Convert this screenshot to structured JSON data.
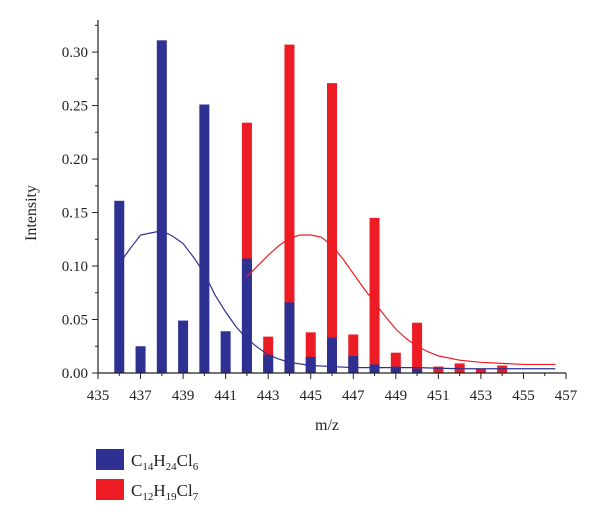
{
  "chart_data": {
    "type": "bar",
    "xlabel": "m/z",
    "ylabel": "Intensity",
    "xlim": [
      435,
      457
    ],
    "ylim": [
      0,
      0.33
    ],
    "x_ticks": [
      "435",
      "437",
      "439",
      "441",
      "443",
      "445",
      "447",
      "449",
      "451",
      "453",
      "455",
      "457"
    ],
    "y_ticks": [
      "0.00",
      "0.05",
      "0.10",
      "0.15",
      "0.20",
      "0.25",
      "0.30"
    ],
    "series": [
      {
        "name": "C14H24Cl6",
        "color": "#2e3192",
        "x": [
          436,
          437,
          438,
          439,
          440,
          441,
          442,
          443,
          444,
          445,
          446,
          447,
          448,
          449,
          450
        ],
        "values": [
          0.161,
          0.025,
          0.311,
          0.049,
          0.251,
          0.039,
          0.107,
          0.017,
          0.066,
          0.015,
          0.033,
          0.016,
          0.008,
          0.006,
          0.004
        ]
      },
      {
        "name": "C12H19Cl7",
        "color": "#ed1c24",
        "x": [
          442,
          443,
          444,
          445,
          446,
          447,
          448,
          449,
          450,
          451,
          452,
          453,
          454
        ],
        "values": [
          0.234,
          0.034,
          0.307,
          0.038,
          0.271,
          0.036,
          0.145,
          0.019,
          0.047,
          0.006,
          0.009,
          0.004,
          0.007
        ]
      }
    ],
    "envelopes": [
      {
        "color": "#2e3192",
        "x": [
          436,
          436.5,
          437,
          437.5,
          438,
          438.5,
          439,
          439.5,
          440,
          440.5,
          441,
          441.5,
          442,
          442.5,
          443,
          443.5,
          444,
          445,
          446,
          447,
          448,
          449,
          450,
          452,
          454,
          456.5
        ],
        "y": [
          0.102,
          0.116,
          0.129,
          0.131,
          0.133,
          0.128,
          0.121,
          0.108,
          0.093,
          0.073,
          0.057,
          0.043,
          0.032,
          0.024,
          0.017,
          0.013,
          0.01,
          0.007,
          0.006,
          0.005,
          0.005,
          0.005,
          0.005,
          0.004,
          0.004,
          0.004
        ]
      },
      {
        "color": "#ed1c24",
        "x": [
          442,
          442.5,
          443,
          443.5,
          444,
          444.5,
          445,
          445.5,
          446,
          446.5,
          447,
          447.5,
          448,
          448.5,
          449,
          449.5,
          450,
          450.5,
          451,
          452,
          453,
          454,
          455,
          456.5
        ],
        "y": [
          0.09,
          0.1,
          0.11,
          0.119,
          0.126,
          0.129,
          0.129,
          0.127,
          0.119,
          0.107,
          0.093,
          0.079,
          0.066,
          0.053,
          0.041,
          0.032,
          0.025,
          0.02,
          0.016,
          0.012,
          0.01,
          0.009,
          0.008,
          0.008
        ]
      }
    ]
  },
  "legend": {
    "items": [
      {
        "color": "#2e3192",
        "base1": "C",
        "sub1": "14",
        "base2": "H",
        "sub2": "24",
        "base3": "Cl",
        "sub3": "6"
      },
      {
        "color": "#ed1c24",
        "base1": "C",
        "sub1": "12",
        "base2": "H",
        "sub2": "19",
        "base3": "Cl",
        "sub3": "7"
      }
    ]
  }
}
